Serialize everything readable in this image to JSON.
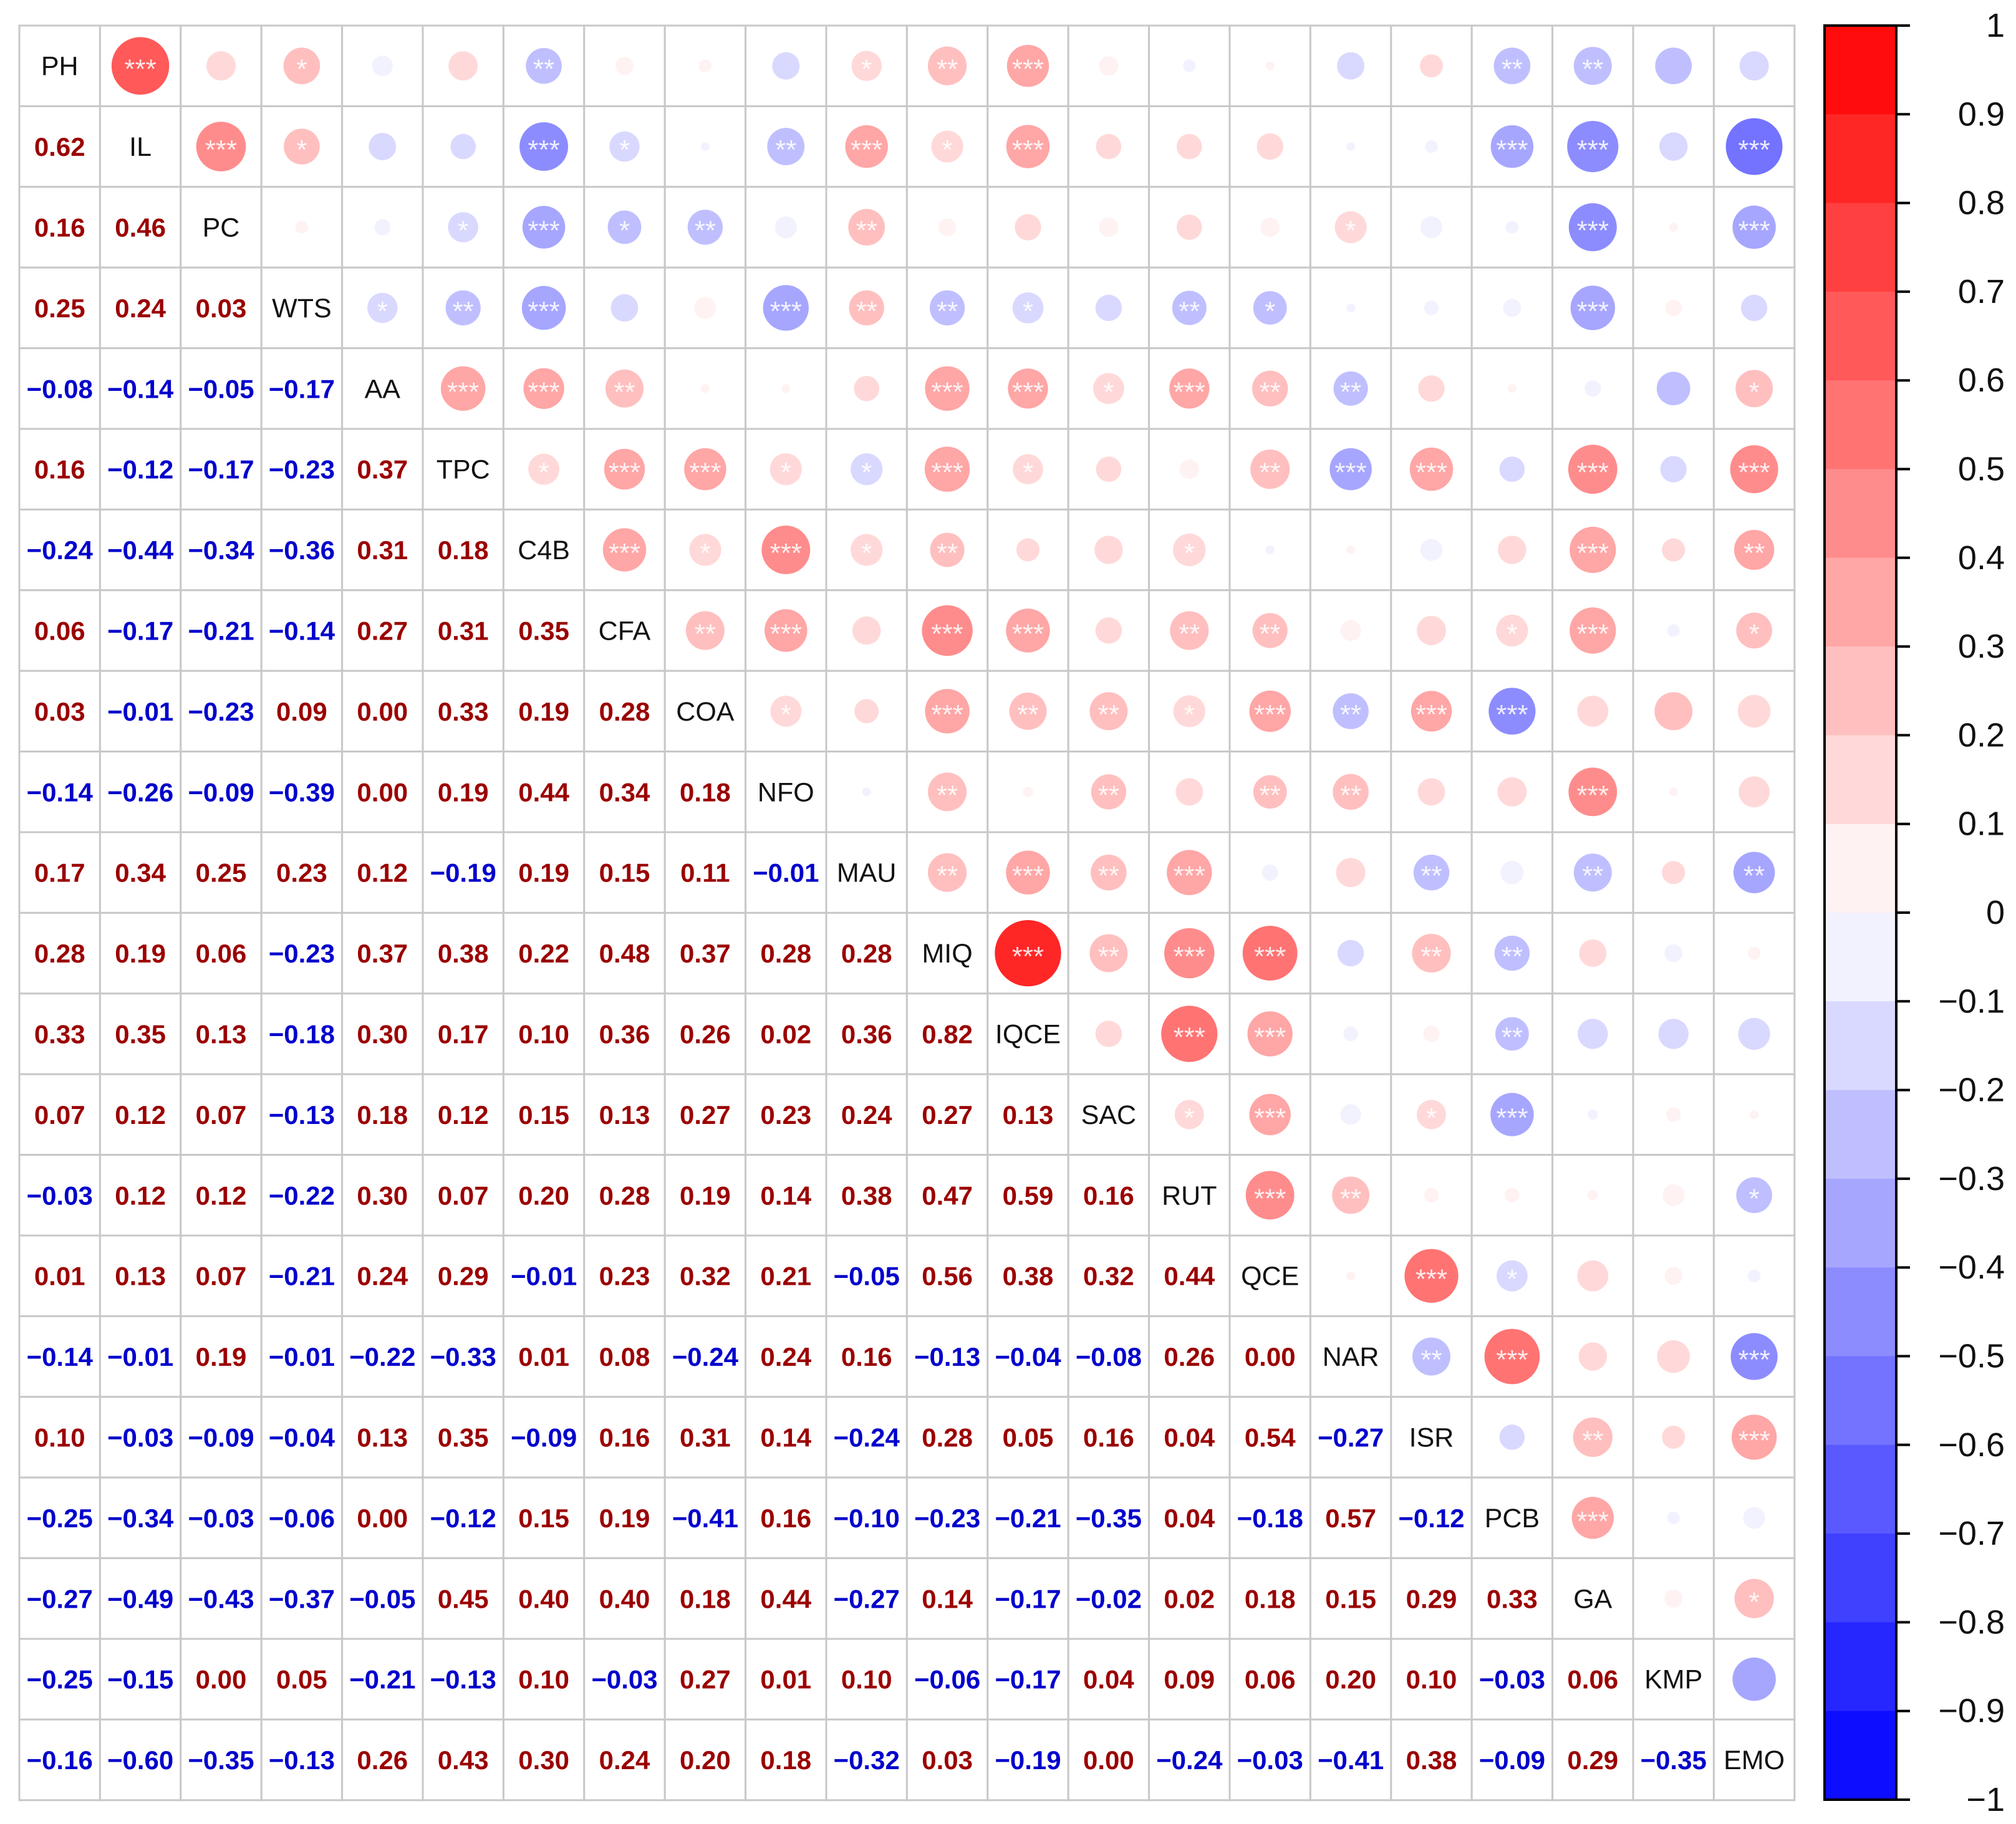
{
  "chart_data": {
    "type": "heatmap",
    "variables": [
      "PH",
      "IL",
      "PC",
      "WTS",
      "AA",
      "TPC",
      "C4B",
      "CFA",
      "COA",
      "NFO",
      "MAU",
      "MIQ",
      "IQCE",
      "SAC",
      "RUT",
      "QCE",
      "NAR",
      "ISR",
      "PCB",
      "GA",
      "KMP",
      "EMO"
    ],
    "lower_values": [
      [],
      [
        0.62
      ],
      [
        0.16,
        0.46
      ],
      [
        0.25,
        0.24,
        0.03
      ],
      [
        -0.08,
        -0.14,
        -0.05,
        -0.17
      ],
      [
        0.16,
        -0.12,
        -0.17,
        -0.23,
        0.37
      ],
      [
        -0.24,
        -0.44,
        -0.34,
        -0.36,
        0.31,
        0.18
      ],
      [
        0.06,
        -0.17,
        -0.21,
        -0.14,
        0.27,
        0.31,
        0.35
      ],
      [
        0.03,
        -0.01,
        -0.23,
        0.09,
        0.0,
        0.33,
        0.19,
        0.28
      ],
      [
        -0.14,
        -0.26,
        -0.09,
        -0.39,
        0.0,
        0.19,
        0.44,
        0.34,
        0.18
      ],
      [
        0.17,
        0.34,
        0.25,
        0.23,
        0.12,
        -0.19,
        0.19,
        0.15,
        0.11,
        -0.01
      ],
      [
        0.28,
        0.19,
        0.06,
        -0.23,
        0.37,
        0.38,
        0.22,
        0.48,
        0.37,
        0.28,
        0.28
      ],
      [
        0.33,
        0.35,
        0.13,
        -0.18,
        0.3,
        0.17,
        0.1,
        0.36,
        0.26,
        0.02,
        0.36,
        0.82
      ],
      [
        0.07,
        0.12,
        0.07,
        -0.13,
        0.18,
        0.12,
        0.15,
        0.13,
        0.27,
        0.23,
        0.24,
        0.27,
        0.13
      ],
      [
        -0.03,
        0.12,
        0.12,
        -0.22,
        0.3,
        0.07,
        0.2,
        0.28,
        0.19,
        0.14,
        0.38,
        0.47,
        0.59,
        0.16
      ],
      [
        0.01,
        0.13,
        0.07,
        -0.21,
        0.24,
        0.29,
        -0.01,
        0.23,
        0.32,
        0.21,
        -0.05,
        0.56,
        0.38,
        0.32,
        0.44
      ],
      [
        -0.14,
        -0.01,
        0.19,
        -0.01,
        -0.22,
        -0.33,
        0.01,
        0.08,
        -0.24,
        0.24,
        0.16,
        -0.13,
        -0.04,
        -0.08,
        0.26,
        0.0
      ],
      [
        0.1,
        -0.03,
        -0.09,
        -0.04,
        0.13,
        0.35,
        -0.09,
        0.16,
        0.31,
        0.14,
        -0.24,
        0.28,
        0.05,
        0.16,
        0.04,
        0.54,
        -0.27
      ],
      [
        -0.25,
        -0.34,
        -0.03,
        -0.06,
        0.0,
        -0.12,
        0.15,
        0.19,
        -0.41,
        0.16,
        -0.1,
        -0.23,
        -0.21,
        -0.35,
        0.04,
        -0.18,
        0.57,
        -0.12
      ],
      [
        -0.27,
        -0.49,
        -0.43,
        -0.37,
        -0.05,
        0.45,
        0.4,
        0.4,
        0.18,
        0.44,
        -0.27,
        0.14,
        -0.17,
        -0.02,
        0.02,
        0.18,
        0.15,
        0.29,
        0.33
      ],
      [
        -0.25,
        -0.15,
        0.0,
        0.05,
        -0.21,
        -0.13,
        0.1,
        -0.03,
        0.27,
        0.01,
        0.1,
        -0.06,
        -0.17,
        0.04,
        0.09,
        0.06,
        0.2,
        0.1,
        -0.03,
        0.06
      ],
      [
        -0.16,
        -0.6,
        -0.35,
        -0.13,
        0.26,
        0.43,
        0.3,
        0.24,
        0.2,
        0.18,
        -0.32,
        0.03,
        -0.19,
        0.0,
        -0.24,
        -0.03,
        -0.41,
        0.38,
        -0.09,
        0.29,
        -0.35
      ]
    ],
    "upper_significance": [
      [
        "***",
        "",
        "*",
        "",
        "",
        "**",
        "",
        "",
        "",
        "*",
        "**",
        "***",
        "",
        "",
        "",
        "",
        "",
        "**",
        "**",
        "",
        ""
      ],
      [
        "***",
        "*",
        "",
        "",
        "***",
        "*",
        "",
        "**",
        "***",
        "*",
        "***",
        "",
        "",
        "",
        "",
        "",
        "***",
        "***",
        "",
        "***"
      ],
      [
        "",
        "",
        "*",
        "***",
        "*",
        "**",
        "",
        "**",
        "",
        "",
        "",
        "",
        "",
        "*",
        "",
        "",
        "***",
        "",
        "***"
      ],
      [
        "*",
        "**",
        "***",
        "",
        "",
        "***",
        "**",
        "**",
        "*",
        "",
        "**",
        "*",
        "",
        "",
        "",
        "***",
        "",
        ""
      ],
      [
        "***",
        "***",
        "**",
        "",
        "",
        "",
        "***",
        "***",
        "*",
        "***",
        "**",
        "**",
        "",
        "",
        "",
        "",
        "*"
      ],
      [
        "*",
        "***",
        "***",
        "*",
        "*",
        "***",
        "*",
        "",
        "",
        "**",
        "***",
        "***",
        "",
        "***",
        "",
        "***"
      ],
      [
        "***",
        "*",
        "***",
        "*",
        "**",
        "",
        "",
        "*",
        "",
        "",
        "",
        "",
        "***",
        "",
        "**"
      ],
      [
        "**",
        "***",
        "",
        "***",
        "***",
        "",
        "**",
        "**",
        "",
        "",
        "*",
        "***",
        "",
        "*"
      ],
      [
        "*",
        "",
        "***",
        "**",
        "**",
        "*",
        "***",
        "**",
        "***",
        "***",
        "",
        "",
        ""
      ],
      [
        "",
        "**",
        "",
        "**",
        "",
        "**",
        "**",
        "",
        "",
        "***",
        "",
        ""
      ],
      [
        "**",
        "***",
        "**",
        "***",
        "",
        "",
        "**",
        "",
        "**",
        "",
        "**"
      ],
      [
        "***",
        "**",
        "***",
        "***",
        "",
        "**",
        "**",
        "",
        "",
        ""
      ],
      [
        "",
        "***",
        "***",
        "",
        "",
        "**",
        "",
        "",
        ""
      ],
      [
        "*",
        "***",
        "",
        "*",
        "***",
        "",
        "",
        ""
      ],
      [
        "***",
        "**",
        "",
        "",
        "",
        "",
        "*"
      ],
      [
        "",
        "***",
        "*",
        "",
        "",
        ""
      ],
      [
        "**",
        "***",
        "",
        "",
        "***"
      ],
      [
        "",
        "**",
        "",
        "***"
      ],
      [
        "***",
        "",
        ""
      ],
      [
        "",
        "*"
      ],
      [
        ""
      ]
    ],
    "colorbar_ticks": [
      "1",
      "0.9",
      "0.8",
      "0.7",
      "0.6",
      "0.5",
      "0.4",
      "0.3",
      "0.2",
      "0.1",
      "0",
      "−0.1",
      "−0.2",
      "−0.3",
      "−0.4",
      "−0.5",
      "−0.6",
      "−0.7",
      "−0.8",
      "−0.9",
      "−1"
    ],
    "color_range": [
      -1,
      1
    ],
    "color_negative": "#0000ff",
    "color_zero": "#ffffff",
    "color_positive": "#ff0000",
    "negative_text_color": "#0000cc",
    "positive_text_color": "#9b0000",
    "title": "",
    "xlabel": "",
    "ylabel": ""
  }
}
